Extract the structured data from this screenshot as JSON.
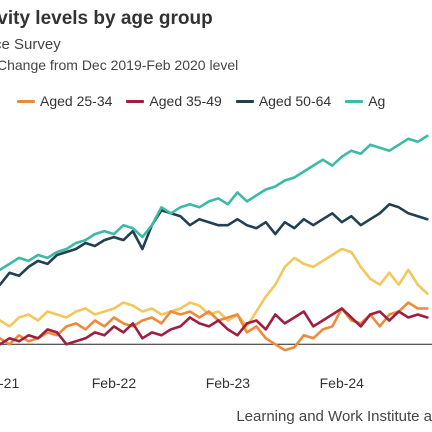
{
  "title": "ivity levels by age group",
  "subtitle": "ce Survey",
  "ylabel": "Change from Dec 2019-Feb 2020 level",
  "source": "Learning and Work Institute a",
  "chart_data": {
    "type": "line",
    "xlabel": "",
    "ylabel": "Change from Dec 2019-Feb 2020 level",
    "xlim": [
      0,
      45.5
    ],
    "ylim": [
      -0.6,
      3.8
    ],
    "ticks": [
      {
        "label": "-21",
        "x": 0
      },
      {
        "label": "Feb-22",
        "x": 12
      },
      {
        "label": "Feb-23",
        "x": 24
      },
      {
        "label": "Feb-24",
        "x": 36
      }
    ],
    "legend_position": "top",
    "grid": false,
    "series": [
      {
        "name": "",
        "color": "#F2C75C",
        "values": [
          0.4,
          0.3,
          0.45,
          0.5,
          0.4,
          0.55,
          0.5,
          0.45,
          0.55,
          0.6,
          0.5,
          0.55,
          0.6,
          0.7,
          0.65,
          0.55,
          0.6,
          0.5,
          0.55,
          0.6,
          0.7,
          0.65,
          0.5,
          0.55,
          0.4,
          0.5,
          0.3,
          0.55,
          0.8,
          1.0,
          1.3,
          1.45,
          1.35,
          1.3,
          1.4,
          1.5,
          1.6,
          1.55,
          1.3,
          1.1,
          1.0,
          1.2,
          1.0,
          1.25,
          1.0,
          0.85
        ]
      },
      {
        "name": "Aged 25-34",
        "color": "#EE8A3C",
        "values": [
          0.1,
          0.0,
          0.15,
          0.05,
          0.1,
          0.2,
          0.15,
          0.3,
          0.35,
          0.25,
          0.4,
          0.3,
          0.45,
          0.35,
          0.3,
          0.4,
          0.45,
          0.35,
          0.55,
          0.5,
          0.55,
          0.45,
          0.55,
          0.4,
          0.45,
          0.5,
          0.2,
          0.3,
          0.1,
          0.0,
          -0.1,
          -0.05,
          0.15,
          0.1,
          0.25,
          0.3,
          0.6,
          0.4,
          0.35,
          0.5,
          0.3,
          0.5,
          0.55,
          0.7,
          0.6,
          0.6
        ]
      },
      {
        "name": "Aged 35-49",
        "color": "#9E1F40",
        "values": [
          0.0,
          0.1,
          0.05,
          0.15,
          0.1,
          0.25,
          0.2,
          0.0,
          0.05,
          0.1,
          0.2,
          0.15,
          0.3,
          0.2,
          0.35,
          0.1,
          0.2,
          0.15,
          0.25,
          0.3,
          0.45,
          0.35,
          0.3,
          0.4,
          0.25,
          0.15,
          0.35,
          0.4,
          0.25,
          0.5,
          0.35,
          0.45,
          0.55,
          0.3,
          0.4,
          0.5,
          0.6,
          0.45,
          0.3,
          0.5,
          0.55,
          0.4,
          0.55,
          0.45,
          0.5,
          0.45
        ]
      },
      {
        "name": "Aged 50-64",
        "color": "#22414F",
        "values": [
          1.0,
          1.2,
          1.15,
          1.3,
          1.4,
          1.35,
          1.5,
          1.55,
          1.6,
          1.7,
          1.65,
          1.75,
          1.8,
          1.75,
          1.9,
          1.6,
          2.0,
          2.25,
          2.2,
          2.15,
          2.0,
          2.1,
          2.05,
          2.0,
          2.0,
          2.1,
          2.0,
          1.95,
          2.05,
          1.85,
          2.05,
          1.95,
          2.1,
          2.0,
          2.1,
          2.2,
          2.05,
          2.15,
          2.0,
          2.1,
          2.2,
          2.35,
          2.3,
          2.2,
          2.15,
          2.1
        ]
      },
      {
        "name": "Ag",
        "color": "#3DBAA6",
        "values": [
          1.25,
          1.35,
          1.45,
          1.4,
          1.5,
          1.45,
          1.55,
          1.6,
          1.7,
          1.75,
          1.85,
          1.9,
          1.85,
          2.0,
          1.95,
          1.8,
          2.0,
          2.3,
          2.2,
          2.3,
          2.35,
          2.3,
          2.4,
          2.45,
          2.35,
          2.55,
          2.4,
          2.5,
          2.6,
          2.65,
          2.75,
          2.8,
          2.9,
          3.0,
          3.1,
          3.0,
          3.15,
          3.25,
          3.2,
          3.35,
          3.3,
          3.25,
          3.35,
          3.45,
          3.4,
          3.5
        ]
      }
    ]
  }
}
